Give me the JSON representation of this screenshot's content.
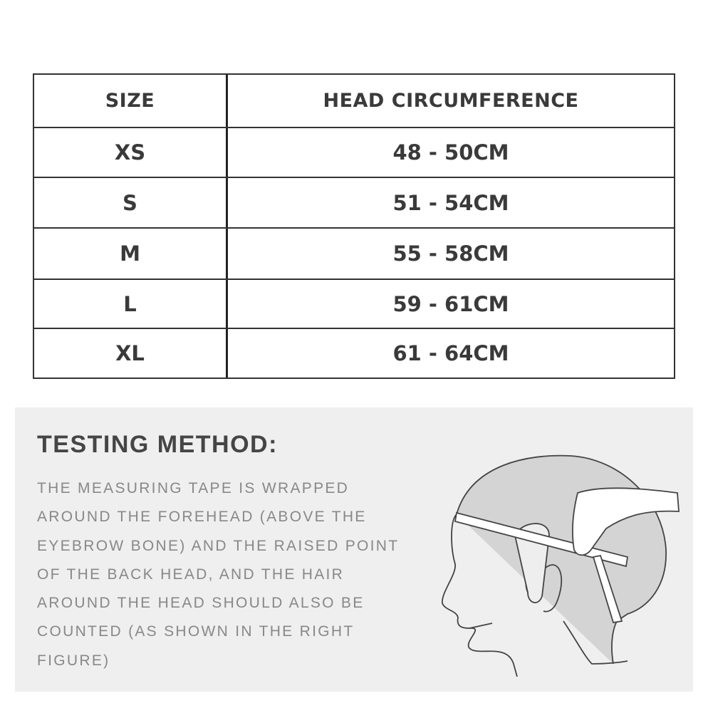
{
  "table": {
    "headers": [
      "SIZE",
      "HEAD CIRCUMFERENCE"
    ],
    "rows": [
      [
        "XS",
        "48 - 50CM"
      ],
      [
        "S",
        "51 - 54CM"
      ],
      [
        "M",
        "55 - 58CM"
      ],
      [
        "L",
        "59 - 61CM"
      ],
      [
        "XL",
        "61 - 64CM"
      ]
    ]
  },
  "testing": {
    "title": "TESTING METHOD:",
    "lines": [
      "THE MEASURING TAPE IS WRAPPED",
      "AROUND THE FOREHEAD (ABOVE THE",
      "EYEBROW BONE) AND THE RAISED POINT",
      "OF THE BACK HEAD, AND THE HAIR",
      "AROUND THE HEAD SHOULD ALSO BE",
      "COUNTED (AS SHOWN IN THE RIGHT",
      "FIGURE)"
    ],
    "illustration_icon": "head-measuring-tape-icon"
  }
}
